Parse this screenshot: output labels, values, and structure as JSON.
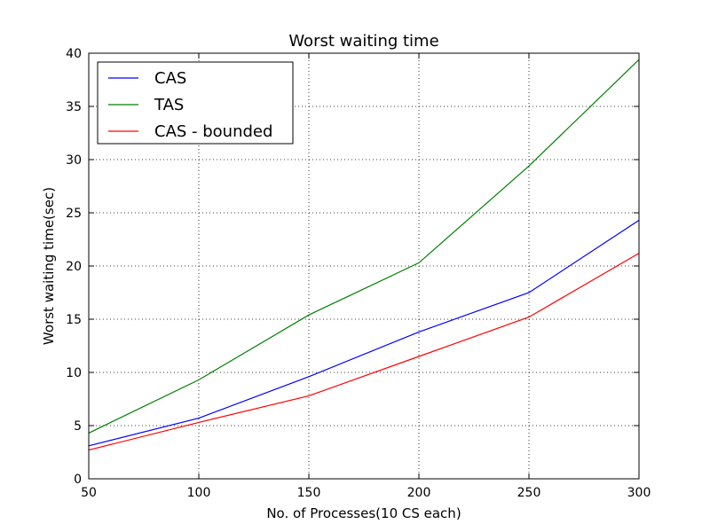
{
  "chart_data": {
    "type": "line",
    "title": "Worst waiting time",
    "xlabel": "No. of Processes(10 CS each)",
    "ylabel": "Worst waiting time(sec)",
    "x": [
      50,
      100,
      150,
      200,
      250,
      300
    ],
    "xlim": [
      50,
      300
    ],
    "ylim": [
      0,
      40
    ],
    "xticks": [
      50,
      100,
      150,
      200,
      250,
      300
    ],
    "yticks": [
      0,
      5,
      10,
      15,
      20,
      25,
      30,
      35,
      40
    ],
    "grid": true,
    "legend_position": "top-left",
    "series": [
      {
        "name": "CAS",
        "color": "#0000ff",
        "values": [
          3.1,
          5.7,
          9.6,
          13.8,
          17.5,
          24.3
        ]
      },
      {
        "name": "TAS",
        "color": "#008000",
        "values": [
          4.3,
          9.3,
          15.4,
          20.3,
          29.4,
          39.4
        ]
      },
      {
        "name": "CAS - bounded",
        "color": "#ff0000",
        "values": [
          2.7,
          5.3,
          7.8,
          11.5,
          15.2,
          21.2
        ]
      }
    ]
  }
}
